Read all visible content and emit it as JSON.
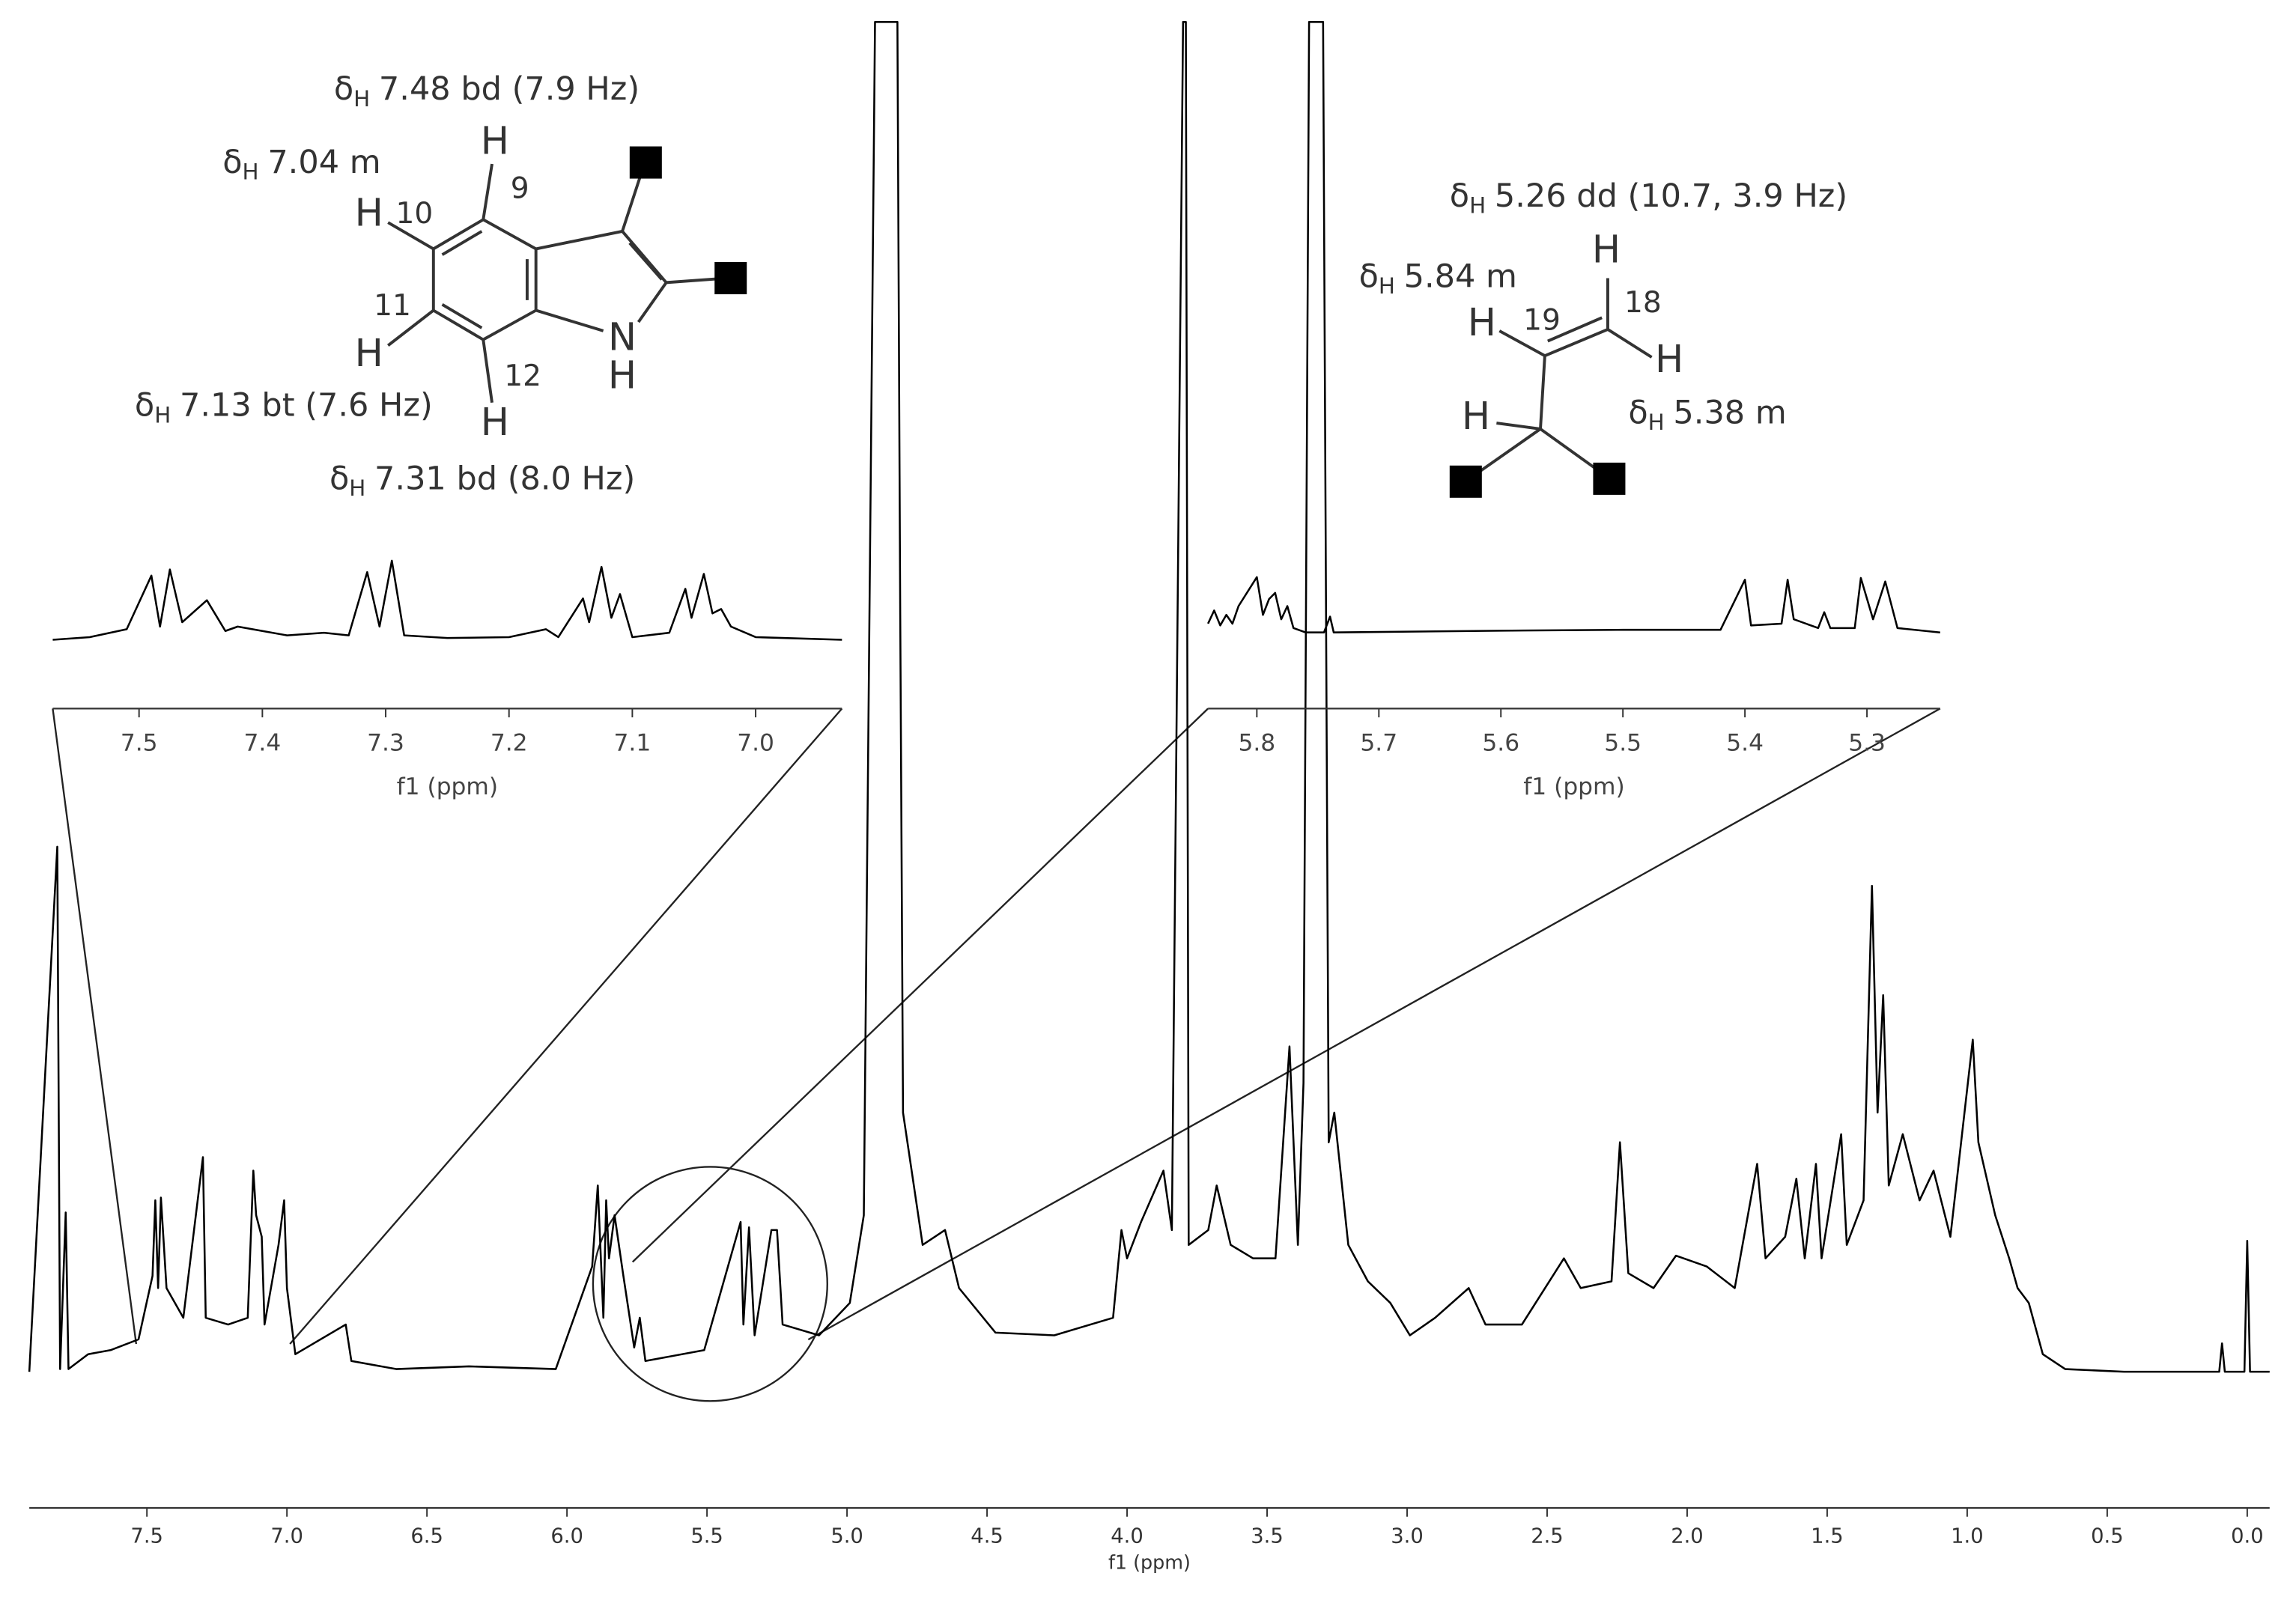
{
  "chart_data": [
    {
      "type": "line",
      "xlabel": "f1 (ppm)",
      "xlim": [
        7.92,
        -0.08
      ],
      "ylim": [
        0,
        100
      ],
      "color": "#000000",
      "xticks": [
        7.5,
        {
          "value": 7,
          "label": "7.0"
        },
        6.5,
        {
          "value": 6,
          "label": "6.0"
        },
        5.5,
        {
          "value": 5,
          "label": "5.0"
        },
        4.5,
        {
          "value": 4,
          "label": "4.0"
        },
        3.5,
        {
          "value": 3,
          "label": "3.0"
        },
        2.5,
        {
          "value": 2,
          "label": "2.0"
        },
        1.5,
        {
          "value": 1,
          "label": "1.0"
        },
        0.5,
        {
          "value": 0,
          "label": "0.0"
        }
      ],
      "x": [
        7.92,
        7.82,
        7.81,
        7.79,
        7.78,
        7.71,
        7.63,
        7.53,
        7.48,
        7.47,
        7.46,
        7.45,
        7.43,
        7.37,
        7.3,
        7.29,
        7.21,
        7.14,
        7.12,
        7.11,
        7.09,
        7.08,
        7.03,
        7.01,
        7.0,
        6.97,
        6.79,
        6.77,
        6.61,
        6.35,
        6.04,
        5.91,
        5.89,
        5.87,
        5.86,
        5.85,
        5.83,
        5.8,
        5.76,
        5.74,
        5.72,
        5.51,
        5.38,
        5.37,
        5.35,
        5.33,
        5.27,
        5.25,
        5.23,
        5.1,
        4.99,
        4.94,
        4.9,
        4.82,
        4.81,
        4.8,
        4.73,
        4.65,
        4.6,
        4.47,
        4.26,
        4.05,
        4.02,
        4.0,
        3.95,
        3.87,
        3.84,
        3.8,
        3.79,
        3.78,
        3.71,
        3.68,
        3.63,
        3.55,
        3.47,
        3.42,
        3.39,
        3.37,
        3.35,
        3.3,
        3.28,
        3.26,
        3.21,
        3.14,
        3.06,
        2.99,
        2.9,
        2.78,
        2.72,
        2.59,
        2.44,
        2.38,
        2.27,
        2.24,
        2.21,
        2.12,
        2.04,
        1.93,
        1.83,
        1.75,
        1.72,
        1.65,
        1.61,
        1.58,
        1.54,
        1.52,
        1.45,
        1.43,
        1.37,
        1.34,
        1.32,
        1.3,
        1.28,
        1.23,
        1.17,
        1.12,
        1.06,
        0.98,
        0.96,
        0.9,
        0.85,
        0.82,
        0.78,
        0.73,
        0.65,
        0.44,
        0.1,
        0.09,
        0.08,
        0.01,
        0.0,
        -0.01,
        -0.08
      ],
      "values": [
        0,
        38.9,
        0.2,
        11.8,
        0.2,
        1.3,
        1.6,
        2.4,
        7.1,
        12.7,
        6.2,
        12.9,
        6.2,
        4.0,
        15.9,
        4.0,
        3.5,
        4.0,
        14.9,
        11.6,
        10.0,
        3.5,
        9.4,
        12.7,
        6.2,
        1.3,
        3.5,
        0.8,
        0.2,
        0.4,
        0.2,
        7.8,
        13.8,
        4.0,
        12.7,
        8.4,
        11.6,
        7.3,
        1.8,
        4.0,
        0.8,
        1.6,
        11.1,
        3.5,
        10.7,
        2.7,
        10.5,
        10.5,
        3.5,
        2.7,
        5.1,
        11.6,
        100,
        100,
        56.1,
        19.2,
        9.4,
        10.5,
        6.2,
        2.9,
        2.7,
        4.0,
        10.5,
        8.4,
        11.1,
        14.9,
        10.5,
        100,
        100,
        9.4,
        10.5,
        13.8,
        9.4,
        8.4,
        8.4,
        24.1,
        9.4,
        21.4,
        100,
        100,
        17.0,
        19.2,
        9.4,
        6.7,
        5.1,
        2.7,
        4.0,
        6.2,
        3.5,
        3.5,
        8.4,
        6.2,
        6.7,
        17.0,
        7.3,
        6.2,
        8.6,
        7.8,
        6.2,
        15.4,
        8.4,
        10.0,
        14.3,
        8.4,
        15.4,
        8.4,
        17.6,
        9.4,
        12.7,
        36.0,
        19.2,
        27.9,
        13.8,
        17.6,
        12.7,
        14.9,
        10.0,
        24.6,
        17.0,
        11.6,
        8.4,
        6.2,
        5.1,
        1.3,
        0.2,
        0,
        0,
        2.1,
        0,
        0,
        9.7,
        0,
        0
      ]
    },
    {
      "type": "line",
      "xlabel": "f1 (ppm)",
      "xlim": [
        7.57,
        6.93
      ],
      "ylim": [
        0,
        10
      ],
      "color": "#000000",
      "xticks": [
        7.5,
        7.4,
        7.3,
        7.2,
        7.1,
        {
          "value": 7,
          "label": "7.0"
        }
      ],
      "x": [
        7.57,
        7.54,
        7.51,
        7.49,
        7.483,
        7.475,
        7.465,
        7.445,
        7.43,
        7.42,
        7.4,
        7.38,
        7.35,
        7.33,
        7.315,
        7.305,
        7.295,
        7.285,
        7.25,
        7.2,
        7.17,
        7.16,
        7.14,
        7.135,
        7.125,
        7.117,
        7.11,
        7.1,
        7.07,
        7.057,
        7.052,
        7.042,
        7.035,
        7.028,
        7.02,
        7.0,
        6.93
      ],
      "values": [
        0,
        0.3,
        1.2,
        7.3,
        1.5,
        8.0,
        2,
        4.5,
        1,
        1.5,
        1,
        0.5,
        0.8,
        0.5,
        7.7,
        1.5,
        9.0,
        0.5,
        0.2,
        0.3,
        1.2,
        0.3,
        4.7,
        2,
        8.3,
        2.5,
        5.2,
        0.3,
        0.8,
        5.8,
        2.5,
        7.5,
        3,
        3.5,
        1.5,
        0.3,
        0
      ]
    },
    {
      "type": "line",
      "xlabel": "f1 (ppm)",
      "xlim": [
        5.84,
        5.24
      ],
      "ylim": [
        0,
        10
      ],
      "color": "#000000",
      "xticks": [
        5.8,
        5.7,
        5.6,
        5.5,
        5.4,
        5.3
      ],
      "x": [
        5.84,
        5.835,
        5.83,
        5.825,
        5.82,
        5.815,
        5.8,
        5.795,
        5.79,
        5.785,
        5.78,
        5.775,
        5.77,
        5.76,
        5.745,
        5.74,
        5.737,
        5.6,
        5.5,
        5.42,
        5.4,
        5.395,
        5.37,
        5.365,
        5.36,
        5.34,
        5.335,
        5.33,
        5.31,
        5.305,
        5.295,
        5.285,
        5.275,
        5.24
      ],
      "values": [
        1.0,
        2.5,
        0.8,
        2.0,
        1.0,
        3.0,
        6.3,
        2,
        3.8,
        4.5,
        1.5,
        3,
        0.5,
        0,
        0,
        1.8,
        0,
        0.2,
        0.3,
        0.3,
        6.0,
        0.8,
        1.0,
        6.0,
        1.5,
        0.5,
        2.3,
        0.5,
        0.5,
        6.2,
        1.5,
        5.8,
        0.5,
        0
      ]
    }
  ],
  "annotations": [
    {
      "symbol": "δ",
      "subscript": "H",
      "text": "7.48 bd (7.9 Hz)"
    },
    {
      "symbol": "δ",
      "subscript": "H",
      "text": "7.04 m"
    },
    {
      "symbol": "δ",
      "subscript": "H",
      "text": "7.13 bt (7.6 Hz)"
    },
    {
      "symbol": "δ",
      "subscript": "H",
      "text": "7.31 bd (8.0 Hz)"
    },
    {
      "symbol": "δ",
      "subscript": "H",
      "text": "5.26 dd (10.7, 3.9 Hz)"
    },
    {
      "symbol": "δ",
      "subscript": "H",
      "text": "5.84 m"
    },
    {
      "symbol": "δ",
      "subscript": "H",
      "text": "5.38 m"
    }
  ],
  "structures": [
    {
      "labels": [
        "H",
        "9",
        "H",
        "10",
        "11",
        "H",
        "12",
        "H",
        "N",
        "H"
      ]
    },
    {
      "labels": [
        "H",
        "18",
        "H",
        "19",
        "H",
        "H"
      ]
    }
  ]
}
